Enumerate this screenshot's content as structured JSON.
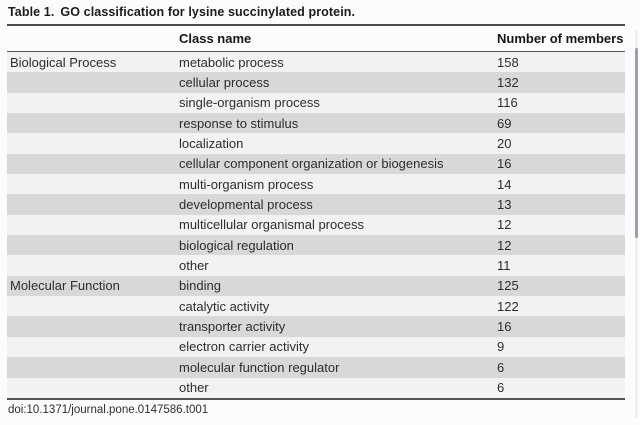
{
  "title": {
    "label": "Table 1.",
    "text": "GO classification for lysine succinylated protein."
  },
  "table": {
    "columns": {
      "category": "",
      "class_name": "Class name",
      "members": "Number of members"
    },
    "sections": [
      {
        "category": "Biological Process",
        "rows": [
          {
            "class_name": "metabolic process",
            "members": "158"
          },
          {
            "class_name": "cellular process",
            "members": "132"
          },
          {
            "class_name": "single-organism process",
            "members": "116"
          },
          {
            "class_name": "response to stimulus",
            "members": "69"
          },
          {
            "class_name": "localization",
            "members": "20"
          },
          {
            "class_name": "cellular component organization or biogenesis",
            "members": "16"
          },
          {
            "class_name": "multi-organism process",
            "members": "14"
          },
          {
            "class_name": "developmental process",
            "members": "13"
          },
          {
            "class_name": "multicellular organismal process",
            "members": "12"
          },
          {
            "class_name": "biological regulation",
            "members": "12"
          },
          {
            "class_name": "other",
            "members": "11"
          }
        ]
      },
      {
        "category": "Molecular Function",
        "rows": [
          {
            "class_name": "binding",
            "members": "125"
          },
          {
            "class_name": "catalytic activity",
            "members": "122"
          },
          {
            "class_name": "transporter activity",
            "members": "16"
          },
          {
            "class_name": "electron carrier activity",
            "members": "9"
          },
          {
            "class_name": "molecular function regulator",
            "members": "6"
          },
          {
            "class_name": "other",
            "members": "6"
          }
        ]
      }
    ]
  },
  "footer": {
    "doi": "doi:10.1371/journal.pone.0147586.t001"
  },
  "colors": {
    "stripe_light": "#f2f2f2",
    "stripe_dark": "#d8d8d8",
    "rule": "#4a4a4a",
    "text": "#2d2d2d",
    "scrollbar_thumb": "#9aa1ab"
  }
}
